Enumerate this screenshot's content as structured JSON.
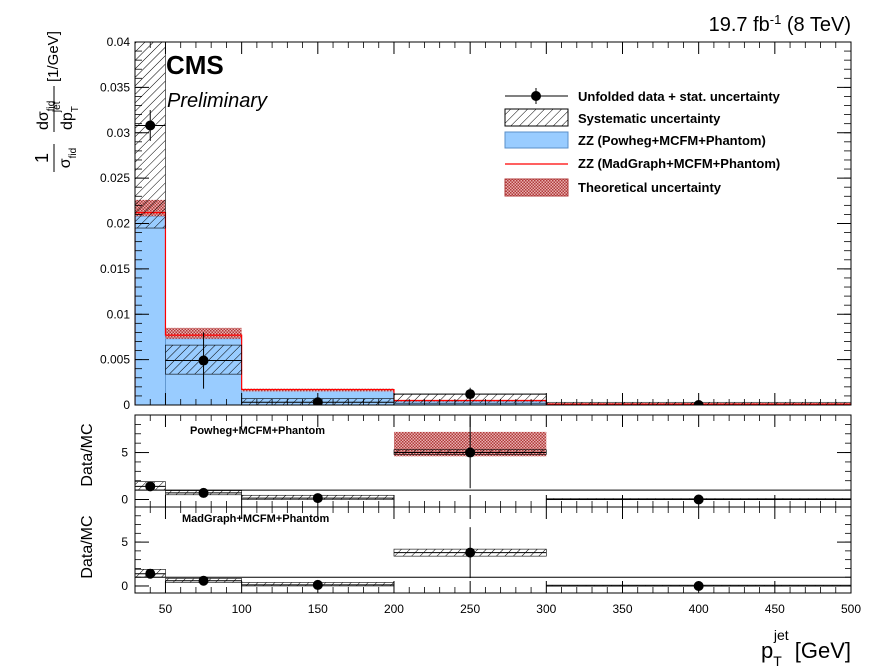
{
  "header": {
    "lumi_value": "19.7 fb",
    "lumi_exp": "-1",
    "energy": " (8 TeV)",
    "cms": "CMS",
    "preliminary": "Preliminary"
  },
  "axes": {
    "x_label_main": "p",
    "x_label_sup": "jet",
    "x_label_sub": "T",
    "x_label_unit": " [GeV]",
    "y_label_ratio1": "Data/MC",
    "y_label_ratio2": "Data/MC",
    "y_label_main": {
      "one": "1",
      "sigma": "σ",
      "sigma_sub": "fid",
      "num_d": "d",
      "num_sigma": "σ",
      "num_sub": "fid",
      "den_dp": "dp",
      "den_sup": "jet",
      "den_sub": "T",
      "unit": "[1/GeV]"
    }
  },
  "panel_labels": {
    "ratio1": "Powheg+MCFM+Phantom",
    "ratio2": "MadGraph+MCFM+Phantom"
  },
  "legend": [
    {
      "key": "data",
      "label": "Unfolded data + stat. uncertainty"
    },
    {
      "key": "syst",
      "label": "Systematic uncertainty"
    },
    {
      "key": "powheg",
      "label": "ZZ (Powheg+MCFM+Phantom)"
    },
    {
      "key": "madgraph",
      "label": "ZZ (MadGraph+MCFM+Phantom)"
    },
    {
      "key": "theo",
      "label": "Theoretical uncertainty"
    }
  ],
  "colors": {
    "powheg_fill": "#99ccff",
    "madgraph_line": "#ff0000",
    "theo_fill": "#cc6666"
  },
  "chart_data": [
    {
      "type": "bar",
      "panel": "main",
      "xlim": [
        30,
        500
      ],
      "ylim": [
        0,
        0.04
      ],
      "x_ticks": [
        50,
        100,
        150,
        200,
        250,
        300,
        350,
        400,
        450,
        500
      ],
      "y_ticks": [
        "0",
        "0.005",
        "0.01",
        "0.015",
        "0.02",
        "0.025",
        "0.03",
        "0.035",
        "0.04"
      ],
      "bin_edges": [
        30,
        50,
        100,
        200,
        300,
        500
      ],
      "series": [
        {
          "name": "Unfolded data + stat. uncertainty",
          "x": [
            40,
            75,
            150,
            250,
            400
          ],
          "values": [
            0.0308,
            0.0049,
            0.0003,
            0.0012,
            0.0
          ],
          "stat_err": [
            0.0017,
            0.0031,
            0.0003,
            0.0007,
            0.0001
          ]
        },
        {
          "name": "Systematic uncertainty",
          "low": [
            0.0195,
            0.0034,
            0.0,
            0.0002,
            0.0
          ],
          "high": [
            0.04,
            0.0066,
            0.0007,
            0.0012,
            0.0003
          ]
        },
        {
          "name": "ZZ (Powheg+MCFM+Phantom)",
          "values": [
            0.0208,
            0.0073,
            0.0016,
            0.0004,
            0.0001
          ]
        },
        {
          "name": "ZZ (MadGraph+MCFM+Phantom)",
          "values": [
            0.0212,
            0.0077,
            0.0017,
            0.0005,
            0.0001
          ]
        },
        {
          "name": "Theoretical uncertainty",
          "low": [
            0.0208,
            0.0073,
            0.0015,
            0.0004,
            0.0001
          ],
          "high": [
            0.0226,
            0.0085,
            0.0018,
            0.0005,
            0.0002
          ]
        }
      ]
    },
    {
      "type": "scatter",
      "panel": "ratio1",
      "title": "Powheg+MCFM+Phantom",
      "ylabel": "Data/MC",
      "xlim": [
        30,
        500
      ],
      "ylim": [
        -0.8,
        9
      ],
      "y_ticks": [
        0,
        5
      ],
      "x": [
        40,
        75,
        150,
        250,
        400
      ],
      "values": [
        1.4,
        0.7,
        0.15,
        5.0,
        0.0
      ],
      "stat_err": [
        0.15,
        0.3,
        0.2,
        3.8,
        0.05
      ],
      "syst_low": [
        1.0,
        0.5,
        0.0,
        4.8,
        0.0
      ],
      "syst_high": [
        1.9,
        0.95,
        0.45,
        5.3,
        0.1
      ],
      "theo_low": [
        null,
        null,
        null,
        4.6,
        null
      ],
      "theo_high": [
        null,
        null,
        null,
        7.2,
        null
      ]
    },
    {
      "type": "scatter",
      "panel": "ratio2",
      "title": "MadGraph+MCFM+Phantom",
      "ylabel": "Data/MC",
      "xlim": [
        30,
        500
      ],
      "ylim": [
        -0.8,
        9
      ],
      "y_ticks": [
        0,
        5
      ],
      "x": [
        40,
        75,
        150,
        250,
        400
      ],
      "values": [
        1.4,
        0.6,
        0.12,
        3.8,
        0.0
      ],
      "stat_err": [
        0.15,
        0.25,
        0.2,
        2.9,
        0.05
      ],
      "syst_low": [
        1.0,
        0.4,
        0.0,
        3.4,
        0.0
      ],
      "syst_high": [
        1.9,
        0.85,
        0.4,
        4.2,
        0.1
      ]
    }
  ]
}
